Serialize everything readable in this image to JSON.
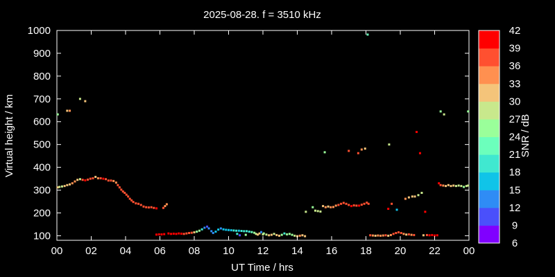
{
  "chart_data": {
    "type": "scatter",
    "title": "2025-08-28. f = 3510 kHz",
    "xlabel": "UT Time / hrs",
    "ylabel": "Virtual height / km",
    "xlim": [
      0,
      24
    ],
    "ylim": [
      80,
      1000
    ],
    "x_ticks": [
      "00",
      "02",
      "04",
      "06",
      "08",
      "10",
      "12",
      "14",
      "16",
      "18",
      "20",
      "22",
      "00"
    ],
    "y_ticks": [
      100,
      200,
      300,
      400,
      500,
      600,
      700,
      800,
      900,
      1000
    ],
    "grid": false,
    "colorbar": {
      "label": "SNR / dB",
      "range": [
        6,
        42
      ],
      "ticks": [
        6,
        9,
        12,
        15,
        18,
        21,
        24,
        27,
        30,
        33,
        36,
        39,
        42
      ],
      "colors": [
        "#8000ff",
        "#4a50fb",
        "#2f8cf5",
        "#10c4e8",
        "#40e8d0",
        "#6cffbc",
        "#9aff9a",
        "#c8e88c",
        "#f4c47a",
        "#ff9050",
        "#ff5030",
        "#ff0000"
      ]
    },
    "series": [
      {
        "points": [
          [
            0.05,
            312,
            30
          ],
          [
            0.15,
            314,
            28
          ],
          [
            0.3,
            316,
            28
          ],
          [
            0.45,
            318,
            30
          ],
          [
            0.6,
            322,
            30
          ],
          [
            0.75,
            325,
            32
          ],
          [
            0.9,
            330,
            34
          ],
          [
            1.05,
            338,
            34
          ],
          [
            1.2,
            345,
            30
          ],
          [
            1.35,
            348,
            28
          ],
          [
            1.5,
            345,
            38
          ],
          [
            1.65,
            343,
            40
          ],
          [
            1.8,
            346,
            36
          ],
          [
            1.95,
            350,
            38
          ],
          [
            2.1,
            352,
            36
          ],
          [
            2.25,
            358,
            30
          ],
          [
            2.4,
            352,
            34
          ],
          [
            2.55,
            352,
            36
          ],
          [
            2.7,
            350,
            40
          ],
          [
            2.85,
            348,
            38
          ],
          [
            3.0,
            342,
            38
          ],
          [
            3.15,
            342,
            36
          ],
          [
            3.3,
            340,
            34
          ],
          [
            3.45,
            333,
            34
          ],
          [
            3.55,
            322,
            36
          ],
          [
            3.65,
            312,
            36
          ],
          [
            3.75,
            302,
            38
          ],
          [
            3.85,
            294,
            36
          ],
          [
            3.95,
            288,
            36
          ],
          [
            4.05,
            280,
            38
          ],
          [
            4.15,
            272,
            36
          ],
          [
            4.25,
            262,
            36
          ],
          [
            4.35,
            255,
            36
          ],
          [
            4.45,
            248,
            38
          ],
          [
            4.6,
            242,
            38
          ],
          [
            4.75,
            240,
            36
          ],
          [
            4.9,
            235,
            36
          ],
          [
            5.05,
            228,
            36
          ],
          [
            5.2,
            225,
            36
          ],
          [
            5.35,
            224,
            38
          ],
          [
            5.5,
            225,
            36
          ],
          [
            5.65,
            222,
            36
          ],
          [
            5.8,
            220,
            42
          ],
          [
            6.2,
            222,
            36
          ],
          [
            6.3,
            230,
            34
          ],
          [
            6.4,
            238,
            34
          ],
          [
            0.6,
            648,
            32
          ],
          [
            0.75,
            648,
            33
          ],
          [
            1.35,
            700,
            27
          ],
          [
            1.65,
            690,
            31
          ],
          [
            0.05,
            632,
            25
          ]
        ]
      },
      {
        "points": [
          [
            5.8,
            105,
            42
          ],
          [
            5.95,
            106,
            42
          ],
          [
            6.1,
            106,
            42
          ],
          [
            6.25,
            107,
            42
          ],
          [
            6.5,
            110,
            40
          ],
          [
            6.65,
            108,
            40
          ],
          [
            6.8,
            109,
            40
          ],
          [
            6.95,
            108,
            40
          ],
          [
            7.1,
            110,
            40
          ],
          [
            7.25,
            109,
            40
          ],
          [
            7.4,
            108,
            38
          ],
          [
            7.55,
            110,
            38
          ],
          [
            7.7,
            112,
            38
          ],
          [
            7.85,
            113,
            36
          ],
          [
            8.0,
            115,
            30
          ],
          [
            8.15,
            118,
            26
          ],
          [
            8.3,
            122,
            24
          ],
          [
            8.45,
            128,
            20
          ],
          [
            8.6,
            135,
            12
          ],
          [
            8.75,
            140,
            9
          ],
          [
            8.85,
            132,
            12
          ],
          [
            9.0,
            120,
            14
          ],
          [
            9.1,
            112,
            12
          ],
          [
            9.25,
            118,
            15
          ],
          [
            9.4,
            127,
            16
          ],
          [
            9.55,
            132,
            14
          ],
          [
            9.7,
            128,
            15
          ],
          [
            9.85,
            126,
            16
          ],
          [
            10.0,
            125,
            16
          ],
          [
            10.15,
            124,
            17
          ],
          [
            10.3,
            123,
            18
          ],
          [
            10.45,
            122,
            18
          ],
          [
            10.6,
            122,
            17
          ],
          [
            10.75,
            121,
            18
          ],
          [
            10.9,
            120,
            18
          ],
          [
            11.05,
            120,
            18
          ],
          [
            11.2,
            118,
            20
          ],
          [
            11.35,
            116,
            22
          ],
          [
            11.5,
            113,
            24
          ],
          [
            11.6,
            108,
            28
          ],
          [
            11.7,
            105,
            30
          ],
          [
            11.8,
            110,
            31
          ],
          [
            11.9,
            116,
            12
          ],
          [
            12.05,
            110,
            24
          ],
          [
            12.2,
            105,
            28
          ],
          [
            12.35,
            102,
            30
          ],
          [
            12.5,
            104,
            30
          ],
          [
            12.65,
            108,
            28
          ],
          [
            12.8,
            103,
            30
          ],
          [
            12.95,
            100,
            32
          ],
          [
            13.1,
            104,
            24
          ],
          [
            13.25,
            110,
            18
          ],
          [
            13.4,
            106,
            24
          ],
          [
            13.55,
            108,
            26
          ],
          [
            13.7,
            104,
            26
          ],
          [
            13.85,
            100,
            28
          ],
          [
            14.0,
            98,
            32
          ],
          [
            14.15,
            100,
            34
          ],
          [
            14.3,
            102,
            30
          ],
          [
            14.45,
            98,
            30
          ],
          [
            10.5,
            108,
            18
          ],
          [
            10.65,
            102,
            9
          ],
          [
            11.0,
            104,
            24
          ],
          [
            12.0,
            106,
            27
          ]
        ]
      },
      {
        "points": [
          [
            14.5,
            205,
            27
          ],
          [
            14.9,
            225,
            24
          ],
          [
            15.05,
            210,
            27
          ],
          [
            15.2,
            208,
            28
          ],
          [
            15.35,
            206,
            27
          ],
          [
            15.5,
            230,
            32
          ],
          [
            15.65,
            225,
            33
          ],
          [
            15.8,
            228,
            32
          ],
          [
            15.95,
            225,
            33
          ],
          [
            16.1,
            226,
            34
          ],
          [
            16.25,
            232,
            34
          ],
          [
            16.4,
            235,
            36
          ],
          [
            16.55,
            240,
            38
          ],
          [
            16.7,
            244,
            36
          ],
          [
            16.85,
            240,
            38
          ],
          [
            17.0,
            235,
            38
          ],
          [
            17.15,
            230,
            40
          ],
          [
            17.3,
            233,
            38
          ],
          [
            17.45,
            232,
            38
          ],
          [
            17.6,
            232,
            40
          ],
          [
            17.75,
            236,
            36
          ],
          [
            17.9,
            240,
            36
          ],
          [
            18.05,
            245,
            38
          ],
          [
            18.15,
            240,
            38
          ],
          [
            15.6,
            466,
            24
          ],
          [
            17.0,
            472,
            36
          ],
          [
            17.55,
            462,
            36
          ],
          [
            17.75,
            478,
            33
          ],
          [
            17.95,
            482,
            30
          ],
          [
            18.1,
            982,
            22
          ],
          [
            19.35,
            500,
            27
          ]
        ]
      },
      {
        "points": [
          [
            18.25,
            102,
            36
          ],
          [
            18.4,
            101,
            33
          ],
          [
            18.55,
            100,
            32
          ],
          [
            18.7,
            101,
            33
          ],
          [
            18.85,
            100,
            34
          ],
          [
            19.0,
            101,
            33
          ],
          [
            19.15,
            102,
            36
          ],
          [
            19.3,
            100,
            30
          ],
          [
            19.45,
            103,
            33
          ],
          [
            19.6,
            108,
            36
          ],
          [
            19.75,
            112,
            36
          ],
          [
            19.9,
            115,
            38
          ],
          [
            20.05,
            112,
            36
          ],
          [
            20.2,
            108,
            33
          ],
          [
            20.35,
            105,
            30
          ],
          [
            20.5,
            106,
            36
          ],
          [
            20.65,
            104,
            34
          ],
          [
            20.8,
            103,
            36
          ],
          [
            21.35,
            102,
            30
          ],
          [
            21.55,
            103,
            36
          ],
          [
            21.7,
            102,
            40
          ],
          [
            21.85,
            103,
            40
          ],
          [
            22.0,
            101,
            42
          ],
          [
            22.15,
            102,
            42
          ],
          [
            19.3,
            218,
            40
          ],
          [
            19.5,
            240,
            38
          ],
          [
            19.8,
            214,
            15
          ],
          [
            20.3,
            262,
            33
          ],
          [
            20.5,
            268,
            32
          ],
          [
            20.7,
            272,
            30
          ],
          [
            20.85,
            272,
            32
          ],
          [
            21.05,
            278,
            27
          ],
          [
            21.25,
            288,
            27
          ],
          [
            21.45,
            205,
            40
          ],
          [
            20.95,
            555,
            40
          ],
          [
            21.15,
            462,
            40
          ],
          [
            22.25,
            330,
            40
          ],
          [
            22.35,
            322,
            36
          ],
          [
            22.5,
            320,
            33
          ],
          [
            22.65,
            318,
            30
          ],
          [
            22.8,
            322,
            32
          ],
          [
            22.95,
            318,
            30
          ],
          [
            23.1,
            320,
            30
          ],
          [
            23.25,
            318,
            28
          ],
          [
            23.4,
            320,
            28
          ],
          [
            23.55,
            318,
            27
          ],
          [
            23.7,
            314,
            26
          ],
          [
            23.85,
            318,
            27
          ],
          [
            23.95,
            320,
            28
          ],
          [
            22.35,
            645,
            24
          ],
          [
            22.55,
            632,
            27
          ],
          [
            23.95,
            645,
            24
          ]
        ]
      }
    ]
  }
}
